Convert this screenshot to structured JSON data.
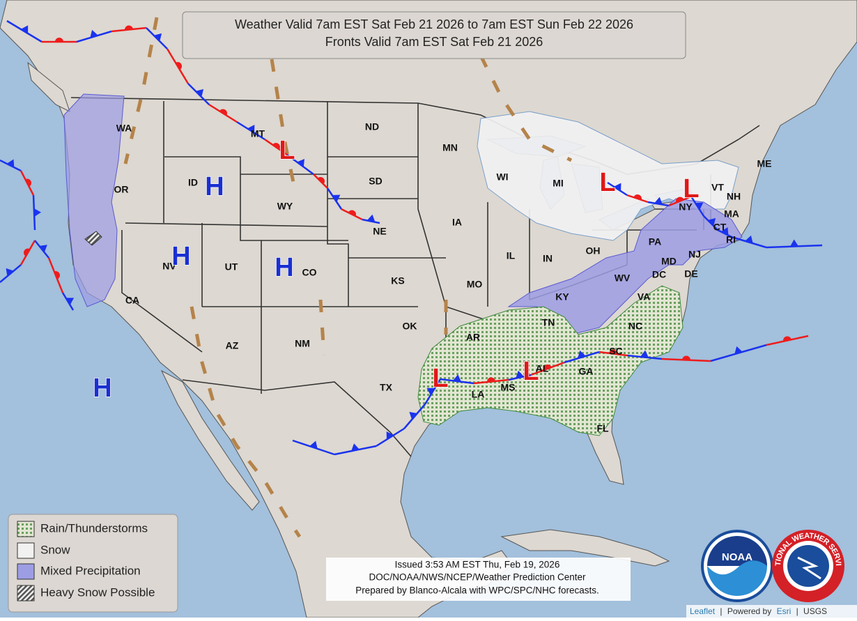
{
  "header": {
    "title": "Weather Valid 7am EST Sat Feb 21 2026 to 7am EST Sun Feb 22 2026",
    "subtitle": "Fronts Valid 7am EST Sat Feb 21 2026"
  },
  "states": [
    "WA",
    "OR",
    "CA",
    "ID",
    "NV",
    "MT",
    "WY",
    "UT",
    "AZ",
    "CO",
    "NM",
    "ND",
    "SD",
    "NE",
    "KS",
    "OK",
    "TX",
    "MN",
    "IA",
    "MO",
    "AR",
    "LA",
    "WI",
    "IL",
    "MI",
    "IN",
    "OH",
    "KY",
    "TN",
    "MS",
    "AL",
    "GA",
    "FL",
    "SC",
    "NC",
    "VA",
    "WV",
    "PA",
    "NY",
    "MD",
    "DE",
    "NJ",
    "CT",
    "RI",
    "MA",
    "VT",
    "NH",
    "ME",
    "DC"
  ],
  "pressure_centers": [
    "H",
    "H",
    "H",
    "H",
    "L",
    "L",
    "L",
    "L",
    "L"
  ],
  "legend": [
    "Rain/Thunderstorms",
    "Snow",
    "Mixed Precipitation",
    "Heavy Snow Possible"
  ],
  "issued": [
    "Issued  3:53 AM EST Thu, Feb 19, 2026",
    "DOC/NOAA/NWS/NCEP/Weather Prediction Center",
    "Prepared by Blanco-Alcala with WPC/SPC/NHC forecasts."
  ],
  "logos": [
    "NOAA",
    "NATIONAL WEATHER SERVICE"
  ],
  "attribution": [
    "Leaflet",
    "|",
    "Powered by",
    "Esri",
    "|",
    "USGS"
  ]
}
